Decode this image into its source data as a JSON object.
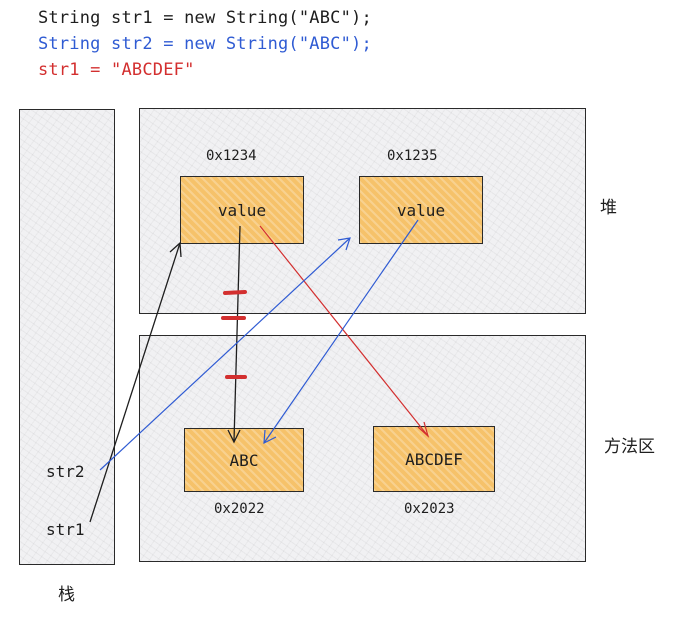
{
  "code": {
    "line1": "String str1 = new String(\"ABC\");",
    "line2": "String str2 = new String(\"ABC\");",
    "line3": "str1 = \"ABCDEF\""
  },
  "regions": {
    "stack": "栈",
    "heap": "堆",
    "method_area": "方法区"
  },
  "stack_vars": {
    "str2": "str2",
    "str1": "str1"
  },
  "heap_objects": [
    {
      "address": "0x1234",
      "label": "value"
    },
    {
      "address": "0x1235",
      "label": "value"
    }
  ],
  "method_objects": [
    {
      "address": "0x2022",
      "label": "ABC"
    },
    {
      "address": "0x2023",
      "label": "ABCDEF"
    }
  ],
  "colors": {
    "black_arrow": "#1e1e1e",
    "blue_arrow": "#2f5bd3",
    "red_arrow": "#d32f2f",
    "object_fill": "#f6c26a"
  }
}
